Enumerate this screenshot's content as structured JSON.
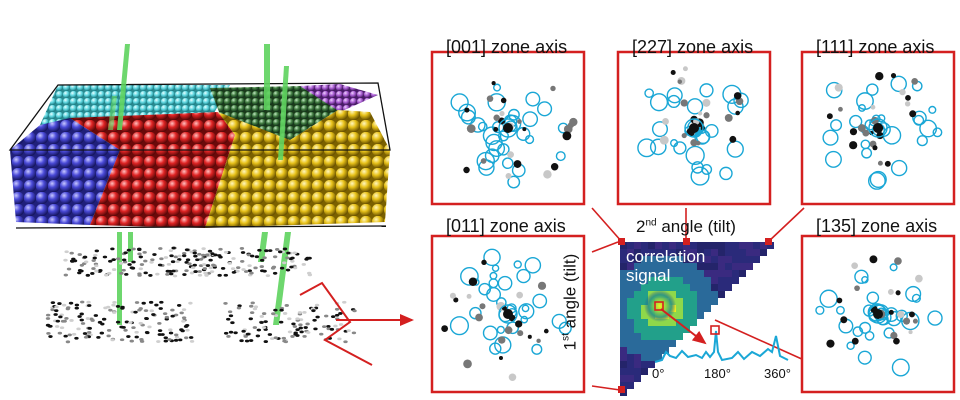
{
  "zone_axes": [
    {
      "label": "[001] zone axis"
    },
    {
      "label": "[227] zone axis"
    },
    {
      "label": "[111] zone axis"
    },
    {
      "label": "[011] zone axis"
    },
    {
      "label": "[135] zone axis"
    }
  ],
  "correlation": {
    "second_angle_base": "2",
    "second_angle_sup": "nd",
    "second_angle_rest": " angle (tilt)",
    "first_angle_base": "1",
    "first_angle_sup": "st",
    "first_angle_rest": " angle (tilt)",
    "signal_line1": "correlation",
    "signal_line2": "signal",
    "ticks": [
      "0°",
      "180°",
      "360°"
    ]
  },
  "colors": {
    "frame": "#d42020",
    "ring": "#1aa7d6",
    "grain_blue": "#4a4ad8",
    "grain_red": "#e02424",
    "grain_yellow": "#e8c21a",
    "grain_cyan": "#5fd6e0",
    "grain_green": "#3f7a3f",
    "grain_purple": "#a65ad0",
    "beam": "#5fd35f"
  }
}
